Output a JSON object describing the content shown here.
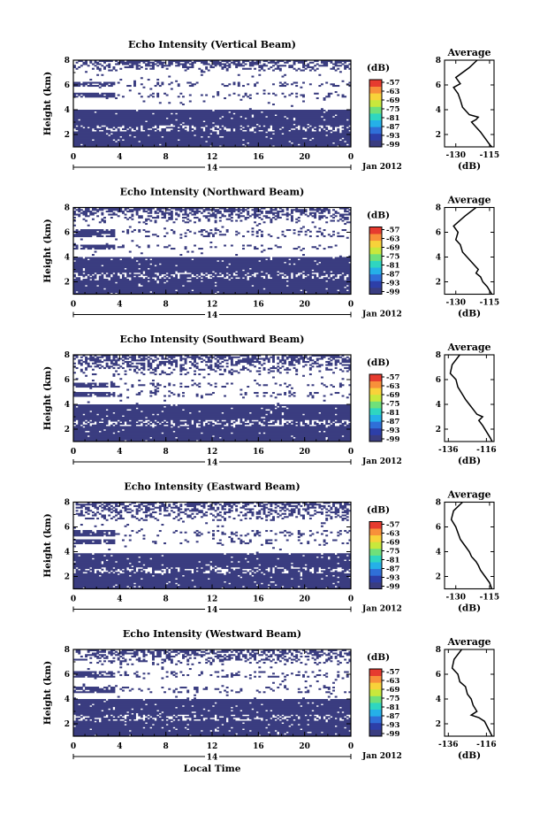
{
  "figure": {
    "xlabel": "Local Time",
    "date_label": "Jan 2012",
    "day_label": "14",
    "colors": {
      "echo": "#3a3d80",
      "background": "#ffffff",
      "profile": "#000000"
    },
    "colorbar_colors": [
      "#3a3d80",
      "#2d3fa8",
      "#2f6fd8",
      "#25b0e8",
      "#2fd6c0",
      "#6fe07a",
      "#c8e83c",
      "#f8d23a",
      "#f8903a",
      "#e63b2f"
    ]
  },
  "chart_data": [
    {
      "type": "heatmap",
      "title": "Echo Intensity (Vertical Beam)",
      "ylabel": "Height (km)",
      "xlabel": "",
      "x_ticks": [
        "0",
        "4",
        "8",
        "12",
        "16",
        "20",
        "0"
      ],
      "y_ticks": [
        "2",
        "4",
        "6",
        "8"
      ],
      "xlim": [
        0,
        24
      ],
      "ylim": [
        1,
        8
      ],
      "colorbar": {
        "label": "(dB)",
        "ticks": [
          "-57",
          "-63",
          "-69",
          "-75",
          "-81",
          "-87",
          "-93",
          "-99"
        ]
      },
      "echo_layers_km": {
        "solid_base": 1.0,
        "solid_top": 4.0,
        "upper_layers": [
          [
            5.0,
            5.4
          ],
          [
            5.9,
            6.3
          ]
        ],
        "top_clutter": [
          7.1,
          8.0
        ]
      },
      "average_profile": {
        "title": "Average",
        "xlabel": "(dB)",
        "x_ticks": [
          "-130",
          "-115"
        ],
        "y_ticks": [
          "2",
          "4",
          "6",
          "8"
        ],
        "xlim": [
          -135,
          -113
        ],
        "ylim": [
          1,
          8
        ],
        "points": [
          [
            -120.5,
            8
          ],
          [
            -124,
            7.4
          ],
          [
            -130,
            6.6
          ],
          [
            -128,
            6.1
          ],
          [
            -131,
            5.8
          ],
          [
            -129,
            5.3
          ],
          [
            -128,
            4.8
          ],
          [
            -127,
            4.2
          ],
          [
            -126,
            4.0
          ],
          [
            -124,
            3.6
          ],
          [
            -120,
            3.4
          ],
          [
            -121,
            3.2
          ],
          [
            -123,
            3.0
          ],
          [
            -121,
            2.6
          ],
          [
            -119,
            2.2
          ],
          [
            -117,
            1.7
          ],
          [
            -115,
            1.2
          ],
          [
            -114,
            1.0
          ]
        ]
      }
    },
    {
      "type": "heatmap",
      "title": "Echo Intensity (Northward Beam)",
      "ylabel": "Height (km)",
      "xlabel": "",
      "x_ticks": [
        "0",
        "4",
        "8",
        "12",
        "16",
        "20",
        "0"
      ],
      "y_ticks": [
        "2",
        "4",
        "6",
        "8"
      ],
      "xlim": [
        0,
        24
      ],
      "ylim": [
        1,
        8
      ],
      "colorbar": {
        "label": "(dB)",
        "ticks": [
          "-57",
          "-63",
          "-69",
          "-75",
          "-81",
          "-87",
          "-93",
          "-99"
        ]
      },
      "echo_layers_km": {
        "solid_base": 1.0,
        "solid_top": 4.0,
        "upper_layers": [
          [
            4.6,
            5.0
          ],
          [
            5.6,
            6.3
          ]
        ],
        "top_clutter": [
          6.8,
          8.0
        ]
      },
      "average_profile": {
        "title": "Average",
        "xlabel": "(dB)",
        "x_ticks": [
          "-130",
          "-115"
        ],
        "y_ticks": [
          "2",
          "4",
          "6",
          "8"
        ],
        "xlim": [
          -135,
          -113
        ],
        "ylim": [
          1,
          8
        ],
        "points": [
          [
            -121,
            8
          ],
          [
            -126,
            7.3
          ],
          [
            -131,
            6.5
          ],
          [
            -129,
            6.0
          ],
          [
            -130,
            5.4
          ],
          [
            -128,
            5.0
          ],
          [
            -127,
            4.4
          ],
          [
            -125,
            4.0
          ],
          [
            -123,
            3.6
          ],
          [
            -121,
            3.2
          ],
          [
            -120,
            3.0
          ],
          [
            -121,
            2.7
          ],
          [
            -119,
            2.4
          ],
          [
            -118,
            2.0
          ],
          [
            -116,
            1.6
          ],
          [
            -114,
            1.0
          ]
        ]
      }
    },
    {
      "type": "heatmap",
      "title": "Echo Intensity (Southward Beam)",
      "ylabel": "Height (km)",
      "xlabel": "",
      "x_ticks": [
        "0",
        "4",
        "8",
        "12",
        "16",
        "20",
        "0"
      ],
      "y_ticks": [
        "2",
        "4",
        "6",
        "8"
      ],
      "xlim": [
        0,
        24
      ],
      "ylim": [
        1,
        8
      ],
      "colorbar": {
        "label": "(dB)",
        "ticks": [
          "-57",
          "-63",
          "-69",
          "-75",
          "-81",
          "-87",
          "-93",
          "-99"
        ]
      },
      "echo_layers_km": {
        "solid_base": 1.0,
        "solid_top": 4.0,
        "upper_layers": [
          [
            4.6,
            5.0
          ],
          [
            5.4,
            5.8
          ]
        ],
        "top_clutter": [
          6.4,
          8.0
        ]
      },
      "average_profile": {
        "title": "Average",
        "xlabel": "(dB)",
        "x_ticks": [
          "-136",
          "-116"
        ],
        "y_ticks": [
          "2",
          "4",
          "6",
          "8"
        ],
        "xlim": [
          -138,
          -112
        ],
        "ylim": [
          1,
          8
        ],
        "points": [
          [
            -130,
            8
          ],
          [
            -134,
            7.2
          ],
          [
            -135,
            6.5
          ],
          [
            -132,
            6.0
          ],
          [
            -131,
            5.4
          ],
          [
            -129,
            4.9
          ],
          [
            -127,
            4.4
          ],
          [
            -125,
            4.0
          ],
          [
            -123,
            3.6
          ],
          [
            -121,
            3.2
          ],
          [
            -118,
            3.0
          ],
          [
            -120,
            2.7
          ],
          [
            -118,
            2.3
          ],
          [
            -116,
            1.8
          ],
          [
            -114,
            1.3
          ],
          [
            -113,
            1.0
          ]
        ]
      }
    },
    {
      "type": "heatmap",
      "title": "Echo Intensity (Eastward Beam)",
      "ylabel": "Height (km)",
      "xlabel": "",
      "x_ticks": [
        "0",
        "4",
        "8",
        "12",
        "16",
        "20",
        "0"
      ],
      "y_ticks": [
        "2",
        "4",
        "6",
        "8"
      ],
      "xlim": [
        0,
        24
      ],
      "ylim": [
        1,
        8
      ],
      "colorbar": {
        "label": "(dB)",
        "ticks": [
          "-57",
          "-63",
          "-69",
          "-75",
          "-81",
          "-87",
          "-93",
          "-99"
        ]
      },
      "echo_layers_km": {
        "solid_base": 1.0,
        "solid_top": 3.9,
        "upper_layers": [
          [
            4.6,
            5.0
          ],
          [
            5.3,
            5.7
          ]
        ],
        "top_clutter": [
          6.5,
          8.0
        ]
      },
      "average_profile": {
        "title": "Average",
        "xlabel": "(dB)",
        "x_ticks": [
          "-130",
          "-115"
        ],
        "y_ticks": [
          "2",
          "4",
          "6",
          "8"
        ],
        "xlim": [
          -135,
          -113
        ],
        "ylim": [
          1,
          8
        ],
        "points": [
          [
            -127,
            8
          ],
          [
            -131,
            7.3
          ],
          [
            -132,
            6.6
          ],
          [
            -130,
            6.0
          ],
          [
            -129,
            5.5
          ],
          [
            -128,
            5.0
          ],
          [
            -126,
            4.5
          ],
          [
            -124,
            4.0
          ],
          [
            -123,
            3.6
          ],
          [
            -121,
            3.2
          ],
          [
            -120,
            2.9
          ],
          [
            -119,
            2.5
          ],
          [
            -117,
            2.0
          ],
          [
            -115,
            1.5
          ],
          [
            -114,
            1.0
          ]
        ]
      }
    },
    {
      "type": "heatmap",
      "title": "Echo Intensity (Westward Beam)",
      "ylabel": "Height (km)",
      "xlabel": "Local Time",
      "x_ticks": [
        "0",
        "4",
        "8",
        "12",
        "16",
        "20",
        "0"
      ],
      "y_ticks": [
        "2",
        "4",
        "6",
        "8"
      ],
      "xlim": [
        0,
        24
      ],
      "ylim": [
        1,
        8
      ],
      "colorbar": {
        "label": "(dB)",
        "ticks": [
          "-57",
          "-63",
          "-69",
          "-75",
          "-81",
          "-87",
          "-93",
          "-99"
        ]
      },
      "echo_layers_km": {
        "solid_base": 1.0,
        "solid_top": 4.0,
        "upper_layers": [
          [
            4.5,
            5.0
          ],
          [
            5.7,
            6.2
          ]
        ],
        "top_clutter": [
          6.8,
          8.0
        ]
      },
      "average_profile": {
        "title": "Average",
        "xlabel": "(dB)",
        "x_ticks": [
          "-136",
          "-116"
        ],
        "y_ticks": [
          "2",
          "4",
          "6",
          "8"
        ],
        "xlim": [
          -138,
          -112
        ],
        "ylim": [
          1,
          8
        ],
        "points": [
          [
            -129,
            8
          ],
          [
            -133,
            7.2
          ],
          [
            -134,
            6.5
          ],
          [
            -131,
            6.0
          ],
          [
            -130,
            5.4
          ],
          [
            -127,
            5.0
          ],
          [
            -126,
            4.4
          ],
          [
            -124,
            4.0
          ],
          [
            -123,
            3.5
          ],
          [
            -121,
            3.0
          ],
          [
            -124,
            2.7
          ],
          [
            -120,
            2.5
          ],
          [
            -117,
            2.2
          ],
          [
            -115,
            1.6
          ],
          [
            -113,
            1.0
          ]
        ]
      }
    }
  ]
}
